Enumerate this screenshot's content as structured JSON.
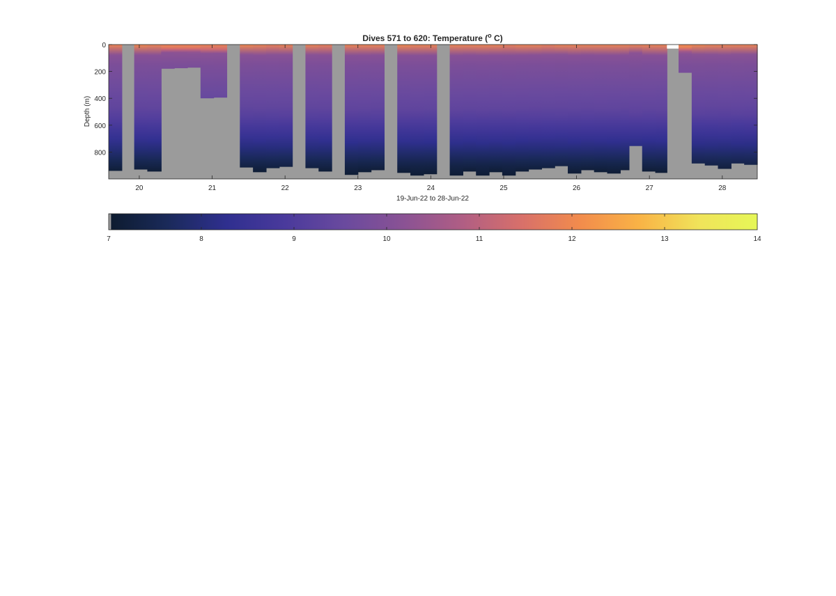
{
  "chart_data": [
    {
      "type": "heatmap",
      "title": "Dives 571 to 620: Temperature (",
      "title_superscript": "o",
      "title_suffix": " C)",
      "xlabel": "19-Jun-22 to 28-Jun-22",
      "ylabel": "Depth (m)",
      "xlim": [
        19.58,
        28.48
      ],
      "ylim": [
        0,
        1000
      ],
      "y_reversed": true,
      "x_ticks": [
        20,
        21,
        22,
        23,
        24,
        25,
        26,
        27,
        28
      ],
      "x_tick_labels": [
        "20",
        "21",
        "22",
        "23",
        "24",
        "25",
        "26",
        "27",
        "28"
      ],
      "y_ticks": [
        0,
        200,
        400,
        600,
        800
      ],
      "y_tick_labels": [
        "0",
        "200",
        "400",
        "600",
        "800"
      ],
      "color_limits": [
        7,
        14
      ],
      "missing_color": "#9b9b9b",
      "colormap": [
        "#0d1b2e",
        "#1a2a5a",
        "#2f2f8f",
        "#4a3a9c",
        "#6a4a9e",
        "#8a5294",
        "#b05e84",
        "#d8706a",
        "#f28c4c",
        "#f9b346",
        "#f0e35a",
        "#e6f757"
      ],
      "dives": [
        {
          "x0": 19.58,
          "x1": 19.76,
          "max_depth": 940,
          "surface_temp": 11.9
        },
        {
          "x0": 19.76,
          "x1": 19.93,
          "max_depth": null
        },
        {
          "x0": 19.93,
          "x1": 20.11,
          "max_depth": 930,
          "surface_temp": 12.0
        },
        {
          "x0": 20.11,
          "x1": 20.3,
          "max_depth": 945,
          "surface_temp": 11.9
        },
        {
          "x0": 20.3,
          "x1": 20.48,
          "max_depth": 180,
          "surface_temp": 11.8
        },
        {
          "x0": 20.48,
          "x1": 20.66,
          "max_depth": 176,
          "surface_temp": 11.8
        },
        {
          "x0": 20.66,
          "x1": 20.84,
          "max_depth": 172,
          "surface_temp": 11.8
        },
        {
          "x0": 20.84,
          "x1": 21.02,
          "max_depth": 400,
          "surface_temp": 11.9
        },
        {
          "x0": 21.02,
          "x1": 21.2,
          "max_depth": 395,
          "surface_temp": 11.9
        },
        {
          "x0": 21.2,
          "x1": 21.38,
          "max_depth": null
        },
        {
          "x0": 21.38,
          "x1": 21.56,
          "max_depth": 915,
          "surface_temp": 12.0
        },
        {
          "x0": 21.56,
          "x1": 21.74,
          "max_depth": 950,
          "surface_temp": 11.9
        },
        {
          "x0": 21.74,
          "x1": 21.92,
          "max_depth": 920,
          "surface_temp": 11.8
        },
        {
          "x0": 21.92,
          "x1": 22.1,
          "max_depth": 910,
          "surface_temp": 11.9
        },
        {
          "x0": 22.1,
          "x1": 22.28,
          "max_depth": null
        },
        {
          "x0": 22.28,
          "x1": 22.46,
          "max_depth": 920,
          "surface_temp": 11.9
        },
        {
          "x0": 22.46,
          "x1": 22.64,
          "max_depth": 945,
          "surface_temp": 11.8
        },
        {
          "x0": 22.64,
          "x1": 22.82,
          "max_depth": null
        },
        {
          "x0": 22.82,
          "x1": 23.0,
          "max_depth": 970,
          "surface_temp": 11.9
        },
        {
          "x0": 23.0,
          "x1": 23.18,
          "max_depth": 950,
          "surface_temp": 11.9
        },
        {
          "x0": 23.18,
          "x1": 23.36,
          "max_depth": 935,
          "surface_temp": 11.9
        },
        {
          "x0": 23.36,
          "x1": 23.54,
          "max_depth": null
        },
        {
          "x0": 23.54,
          "x1": 23.72,
          "max_depth": 955,
          "surface_temp": 12.0
        },
        {
          "x0": 23.72,
          "x1": 23.9,
          "max_depth": 975,
          "surface_temp": 11.9
        },
        {
          "x0": 23.9,
          "x1": 24.08,
          "max_depth": 965,
          "surface_temp": 11.9
        },
        {
          "x0": 24.08,
          "x1": 24.26,
          "max_depth": null
        },
        {
          "x0": 24.26,
          "x1": 24.44,
          "max_depth": 975,
          "surface_temp": 11.9
        },
        {
          "x0": 24.44,
          "x1": 24.62,
          "max_depth": 945,
          "surface_temp": 11.9
        },
        {
          "x0": 24.62,
          "x1": 24.8,
          "max_depth": 975,
          "surface_temp": 11.9
        },
        {
          "x0": 24.8,
          "x1": 24.98,
          "max_depth": 950,
          "surface_temp": 11.9
        },
        {
          "x0": 24.98,
          "x1": 25.16,
          "max_depth": 975,
          "surface_temp": 11.8
        },
        {
          "x0": 25.16,
          "x1": 25.34,
          "max_depth": 945,
          "surface_temp": 11.9
        },
        {
          "x0": 25.34,
          "x1": 25.52,
          "max_depth": 930,
          "surface_temp": 11.9
        },
        {
          "x0": 25.52,
          "x1": 25.7,
          "max_depth": 920,
          "surface_temp": 11.8
        },
        {
          "x0": 25.7,
          "x1": 25.88,
          "max_depth": 905,
          "surface_temp": 11.9
        },
        {
          "x0": 25.88,
          "x1": 26.06,
          "max_depth": 960,
          "surface_temp": 11.9
        },
        {
          "x0": 26.06,
          "x1": 26.24,
          "max_depth": 935,
          "surface_temp": 11.9
        },
        {
          "x0": 26.24,
          "x1": 26.42,
          "max_depth": 950,
          "surface_temp": 11.9
        },
        {
          "x0": 26.42,
          "x1": 26.6,
          "max_depth": 960,
          "surface_temp": 11.9
        },
        {
          "x0": 26.6,
          "x1": 26.72,
          "max_depth": 935,
          "surface_temp": 11.9
        },
        {
          "x0": 26.72,
          "x1": 26.9,
          "max_depth": 755,
          "surface_temp": 11.9
        },
        {
          "x0": 26.9,
          "x1": 27.08,
          "max_depth": 945,
          "surface_temp": 11.9
        },
        {
          "x0": 27.08,
          "x1": 27.24,
          "max_depth": 955,
          "surface_temp": 11.9
        },
        {
          "x0": 27.24,
          "x1": 27.4,
          "max_depth": null,
          "cap_depth": 30
        },
        {
          "x0": 27.4,
          "x1": 27.58,
          "max_depth": 210,
          "surface_temp": 11.9
        },
        {
          "x0": 27.58,
          "x1": 27.76,
          "max_depth": 885,
          "surface_temp": 12.0
        },
        {
          "x0": 27.76,
          "x1": 27.94,
          "max_depth": 900,
          "surface_temp": 11.9
        },
        {
          "x0": 27.94,
          "x1": 28.12,
          "max_depth": 925,
          "surface_temp": 11.9
        },
        {
          "x0": 28.12,
          "x1": 28.3,
          "max_depth": 885,
          "surface_temp": 11.9
        },
        {
          "x0": 28.3,
          "x1": 28.48,
          "max_depth": 895,
          "surface_temp": 11.9
        }
      ]
    },
    {
      "type": "colorbar",
      "clim": [
        7,
        14
      ],
      "ticks": [
        7,
        8,
        9,
        10,
        11,
        12,
        13,
        14
      ],
      "tick_labels": [
        "7",
        "8",
        "9",
        "10",
        "11",
        "12",
        "13",
        "14"
      ]
    }
  ]
}
